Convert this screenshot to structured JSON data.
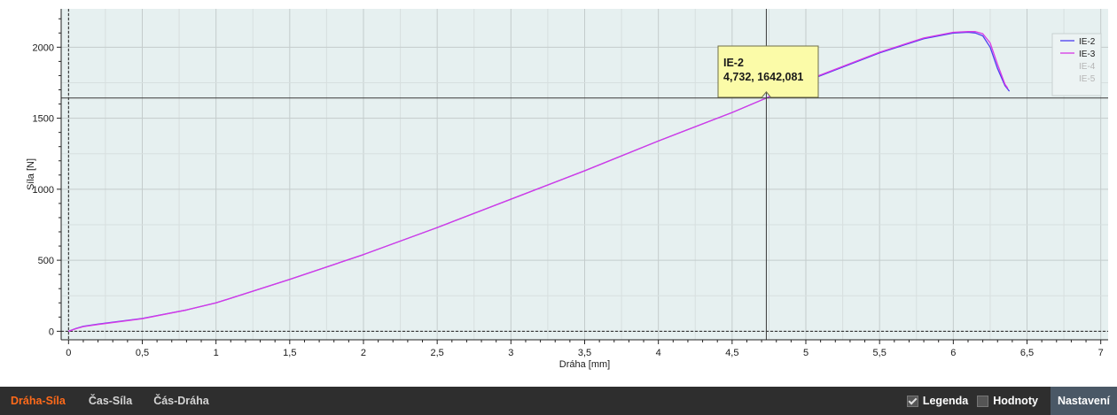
{
  "chart_data": {
    "type": "line",
    "xlabel": "Dráha [mm]",
    "ylabel": "Síla [N]",
    "xlim": [
      -0.05,
      7.05
    ],
    "ylim": [
      -60,
      2270
    ],
    "xticks": [
      0,
      0.5,
      1,
      1.5,
      2,
      2.5,
      3,
      3.5,
      4,
      4.5,
      5,
      5.5,
      6,
      6.5,
      7
    ],
    "xtick_labels": [
      "0",
      "0,5",
      "1",
      "1,5",
      "2",
      "2,5",
      "3",
      "3,5",
      "4",
      "4,5",
      "5",
      "5,5",
      "6",
      "6,5",
      "7"
    ],
    "yticks": [
      0,
      500,
      1000,
      1500,
      2000
    ],
    "ytick_labels": [
      "0",
      "500",
      "1000",
      "1500",
      "2000"
    ],
    "grid": true,
    "legend_position": "top-right",
    "series": [
      {
        "name": "IE-2",
        "color": "#4b3df0",
        "visible": true,
        "x": [
          0,
          0.05,
          0.1,
          0.2,
          0.5,
          0.8,
          1.0,
          1.5,
          2.0,
          2.5,
          3.0,
          3.5,
          4.0,
          4.5,
          4.732,
          5.0,
          5.5,
          5.8,
          6.0,
          6.1,
          6.15,
          6.2,
          6.25,
          6.3,
          6.35,
          6.38
        ],
        "y": [
          0,
          20,
          35,
          50,
          90,
          150,
          200,
          365,
          540,
          730,
          930,
          1130,
          1340,
          1540,
          1642,
          1760,
          1960,
          2060,
          2100,
          2105,
          2100,
          2080,
          2000,
          1850,
          1730,
          1690
        ]
      },
      {
        "name": "IE-3",
        "color": "#d838e6",
        "visible": true,
        "x": [
          0,
          0.05,
          0.1,
          0.2,
          0.5,
          0.8,
          1.0,
          1.5,
          2.0,
          2.5,
          3.0,
          3.5,
          4.0,
          4.5,
          4.732,
          5.0,
          5.5,
          5.8,
          6.0,
          6.1,
          6.15,
          6.2,
          6.25,
          6.3,
          6.35,
          6.37
        ],
        "y": [
          0,
          18,
          33,
          48,
          88,
          150,
          200,
          365,
          540,
          730,
          930,
          1130,
          1340,
          1540,
          1642,
          1765,
          1965,
          2065,
          2105,
          2110,
          2110,
          2095,
          2030,
          1880,
          1740,
          1710
        ]
      },
      {
        "name": "IE-4",
        "color": "#bbbbbb",
        "visible": false,
        "x": [],
        "y": []
      },
      {
        "name": "IE-5",
        "color": "#bbbbbb",
        "visible": false,
        "x": [],
        "y": []
      }
    ],
    "crosshair": {
      "x": 4.732,
      "y": 1642.081
    },
    "tooltip": {
      "series": "IE-2",
      "value": "4,732, 1642,081"
    }
  },
  "tabs": [
    {
      "label": "Dráha-Síla",
      "active": true
    },
    {
      "label": "Čas-Síla",
      "active": false
    },
    {
      "label": "Čás-Dráha",
      "active": false
    }
  ],
  "toolbar": {
    "legend_label": "Legenda",
    "legend_checked": true,
    "values_label": "Hodnoty",
    "values_checked": false,
    "settings_label": "Nastavení"
  },
  "colors": {
    "plot_background": "#e6f0f0",
    "grid": "#c4cccc",
    "tab_active": "#ff6a1a",
    "toolbar_background": "#2e2e2e",
    "tooltip_background": "#fbfba8"
  }
}
